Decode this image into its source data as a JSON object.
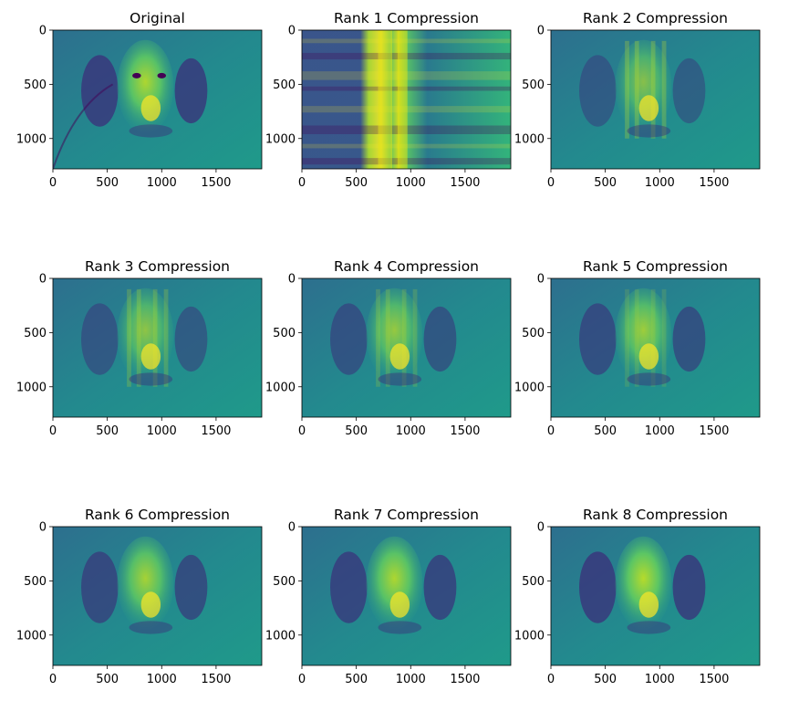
{
  "chart_data": {
    "type": "heatmap",
    "colormap": "viridis",
    "figure": "SVD low-rank image reconstructions of a dog photo",
    "panels": [
      {
        "id": "original",
        "title": "Original",
        "rank": null
      },
      {
        "id": "rank1",
        "title": "Rank 1 Compression",
        "rank": 1
      },
      {
        "id": "rank2",
        "title": "Rank 2 Compression",
        "rank": 2
      },
      {
        "id": "rank3",
        "title": "Rank 3 Compression",
        "rank": 3
      },
      {
        "id": "rank4",
        "title": "Rank 4 Compression",
        "rank": 4
      },
      {
        "id": "rank5",
        "title": "Rank 5 Compression",
        "rank": 5
      },
      {
        "id": "rank6",
        "title": "Rank 6 Compression",
        "rank": 6
      },
      {
        "id": "rank7",
        "title": "Rank 7 Compression",
        "rank": 7
      },
      {
        "id": "rank8",
        "title": "Rank 8 Compression",
        "rank": 8
      }
    ],
    "image_width": 1920,
    "image_height": 1280,
    "xlim": [
      0,
      1920
    ],
    "ylim": [
      1280,
      0
    ],
    "x_ticks": [
      0,
      500,
      1000,
      1500
    ],
    "y_ticks": [
      0,
      500,
      1000
    ],
    "x_tick_labels": [
      "0",
      "500",
      "1000",
      "1500"
    ],
    "y_tick_labels": [
      "0",
      "500",
      "1000"
    ],
    "grid": false,
    "legend": "none"
  }
}
